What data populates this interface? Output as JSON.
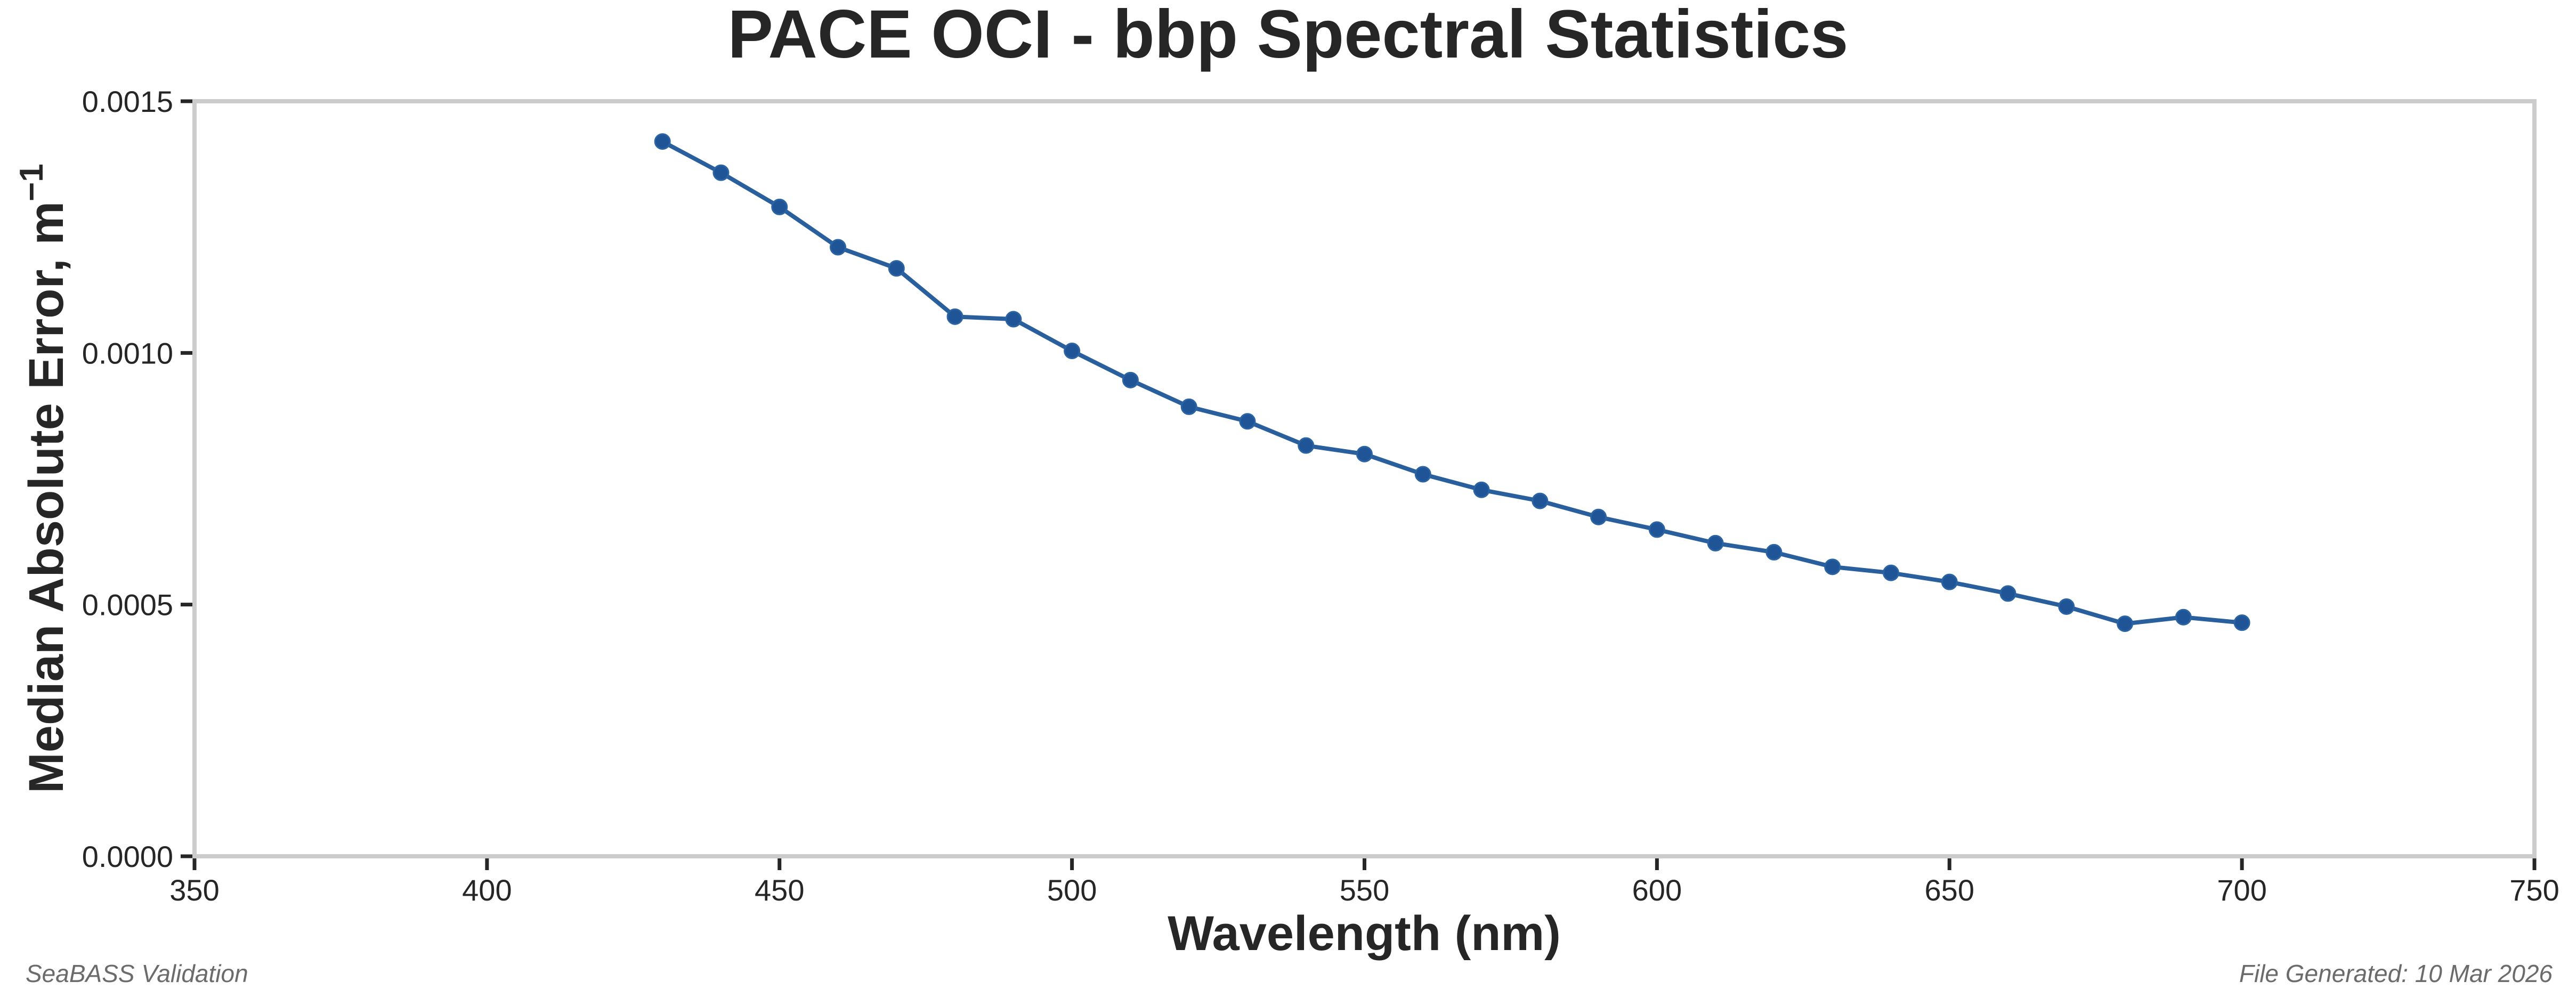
{
  "chart_data": {
    "type": "line",
    "title": "PACE OCI - bbp Spectral Statistics",
    "xlabel": "Wavelength (nm)",
    "ylabel": "Median Absolute Error, m",
    "ylabel_superscript": "−1",
    "xlim": [
      350,
      750
    ],
    "ylim": [
      0.0,
      0.0015
    ],
    "xticks": [
      350,
      400,
      450,
      500,
      550,
      600,
      650,
      700,
      750
    ],
    "xtick_labels": [
      "350",
      "400",
      "450",
      "500",
      "550",
      "600",
      "650",
      "700",
      "750"
    ],
    "yticks": [
      0.0,
      0.0005,
      0.001,
      0.0015
    ],
    "ytick_labels": [
      "0.0000",
      "0.0005",
      "0.0010",
      "0.0015"
    ],
    "grid": false,
    "legend": null,
    "series": [
      {
        "name": "bbp MAE",
        "color": "#2a5f9d",
        "marker": "circle",
        "x": [
          430,
          440,
          450,
          460,
          470,
          480,
          490,
          500,
          510,
          520,
          530,
          540,
          550,
          560,
          570,
          580,
          590,
          600,
          610,
          620,
          630,
          640,
          650,
          660,
          670,
          680,
          690,
          700
        ],
        "y": [
          0.00142,
          0.001358,
          0.00129,
          0.00121,
          0.001168,
          0.001072,
          0.001067,
          0.001004,
          0.000946,
          0.000893,
          0.000864,
          0.000816,
          0.000799,
          0.000759,
          0.000728,
          0.000706,
          0.000674,
          0.000649,
          0.000622,
          0.000604,
          0.000575,
          0.000563,
          0.000545,
          0.000522,
          0.000496,
          0.000462,
          0.000475,
          0.000464
        ]
      }
    ]
  },
  "footer": {
    "left": "SeaBASS Validation",
    "right": "File Generated: 10 Mar 2026"
  }
}
